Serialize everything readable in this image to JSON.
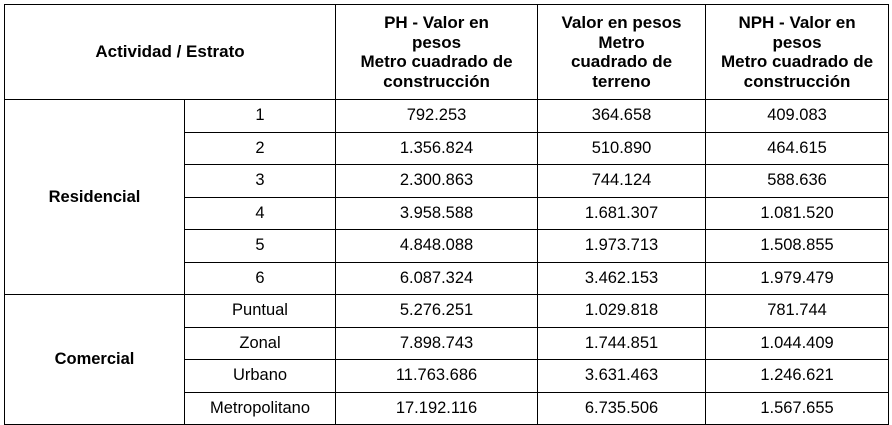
{
  "table": {
    "header": {
      "actividad_estrato": "Actividad / Estrato",
      "ph": [
        "PH - Valor en",
        "pesos",
        "Metro cuadrado de",
        "construcción"
      ],
      "terreno": [
        "Valor en pesos",
        "Metro",
        "cuadrado de",
        "terreno"
      ],
      "nph": [
        "NPH - Valor en",
        "pesos",
        "Metro cuadrado de",
        "construcción"
      ]
    },
    "groups": [
      {
        "name": "Residencial",
        "rows": [
          {
            "estrato": "1",
            "ph": "792.253",
            "terreno": "364.658",
            "nph": "409.083"
          },
          {
            "estrato": "2",
            "ph": "1.356.824",
            "terreno": "510.890",
            "nph": "464.615"
          },
          {
            "estrato": "3",
            "ph": "2.300.863",
            "terreno": "744.124",
            "nph": "588.636"
          },
          {
            "estrato": "4",
            "ph": "3.958.588",
            "terreno": "1.681.307",
            "nph": "1.081.520"
          },
          {
            "estrato": "5",
            "ph": "4.848.088",
            "terreno": "1.973.713",
            "nph": "1.508.855"
          },
          {
            "estrato": "6",
            "ph": "6.087.324",
            "terreno": "3.462.153",
            "nph": "1.979.479"
          }
        ]
      },
      {
        "name": "Comercial",
        "rows": [
          {
            "estrato": "Puntual",
            "ph": "5.276.251",
            "terreno": "1.029.818",
            "nph": "781.744"
          },
          {
            "estrato": "Zonal",
            "ph": "7.898.743",
            "terreno": "1.744.851",
            "nph": "1.044.409"
          },
          {
            "estrato": "Urbano",
            "ph": "11.763.686",
            "terreno": "3.631.463",
            "nph": "1.246.621"
          },
          {
            "estrato": "Metropolitano",
            "ph": "17.192.116",
            "terreno": "6.735.506",
            "nph": "1.567.655"
          }
        ]
      }
    ]
  }
}
